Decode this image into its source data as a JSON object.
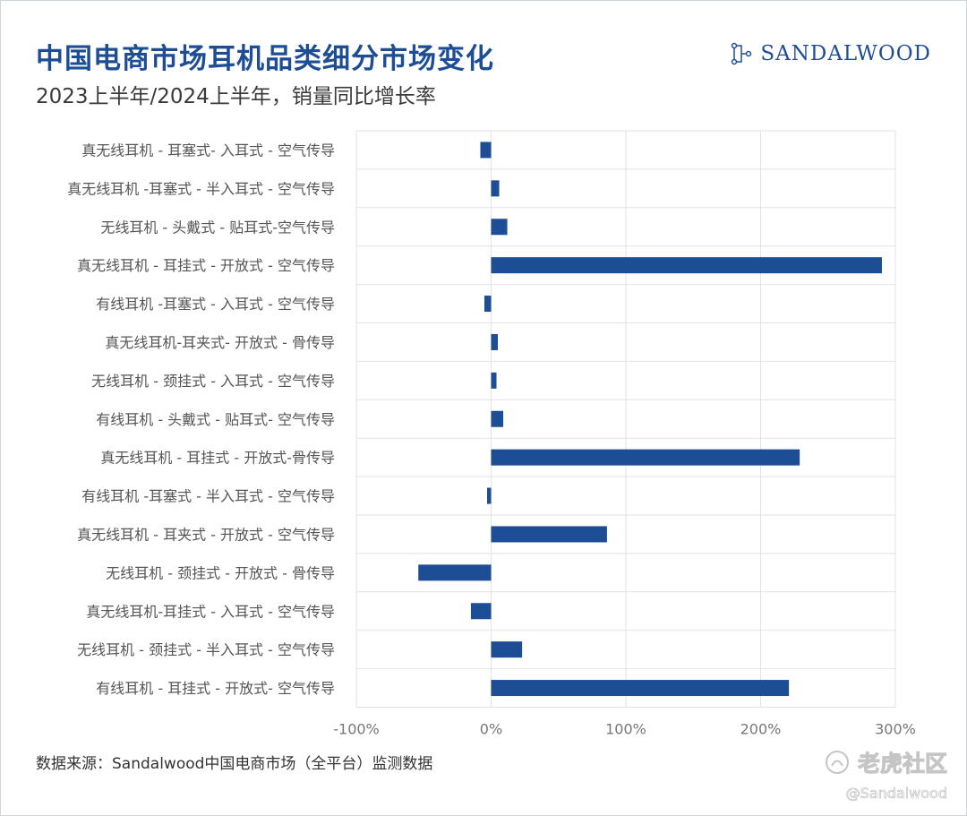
{
  "header": {
    "title": "中国电商市场耳机品类细分市场变化",
    "subtitle": "2023上半年/2024上半年，销量同比增长率",
    "brand": "SANDALWOOD"
  },
  "footer": {
    "source": "数据来源：Sandalwood中国电商市场（全平台）监测数据",
    "watermark": "老虎社区",
    "watermark_handle": "@Sandalwood"
  },
  "chart_data": {
    "type": "bar",
    "orientation": "horizontal",
    "categories": [
      "真无线耳机 - 耳塞式- 入耳式 - 空气传导",
      "真无线耳机 -耳塞式 - 半入耳式 - 空气传导",
      "无线耳机 - 头戴式 - 贴耳式-空气传导",
      "真无线耳机 - 耳挂式 - 开放式 - 空气传导",
      "有线耳机 -耳塞式 - 入耳式 - 空气传导",
      "真无线耳机-耳夹式- 开放式 - 骨传导",
      "无线耳机 - 颈挂式 - 入耳式 - 空气传导",
      "有线耳机 - 头戴式 - 贴耳式- 空气传导",
      "真无线耳机 - 耳挂式 - 开放式-骨传导",
      "有线耳机 -耳塞式 - 半入耳式 - 空气传导",
      "真无线耳机 - 耳夹式 - 开放式 - 空气传导",
      "无线耳机 - 颈挂式 - 开放式 - 骨传导",
      "真无线耳机-耳挂式 - 入耳式 - 空气传导",
      "无线耳机 - 颈挂式 - 半入耳式 - 空气传导",
      "有线耳机 - 耳挂式 - 开放式- 空气传导"
    ],
    "values": [
      -8,
      6,
      12,
      290,
      -5,
      5,
      4,
      9,
      229,
      -3,
      86,
      -54,
      -15,
      23,
      221
    ],
    "unit": "%",
    "xlim": [
      -100,
      300
    ],
    "xticks": [
      "-100%",
      "0%",
      "100%",
      "200%",
      "300%"
    ],
    "xtick_values": [
      -100,
      0,
      100,
      200,
      300
    ],
    "grid": true,
    "bar_color": "#1d4e95"
  }
}
